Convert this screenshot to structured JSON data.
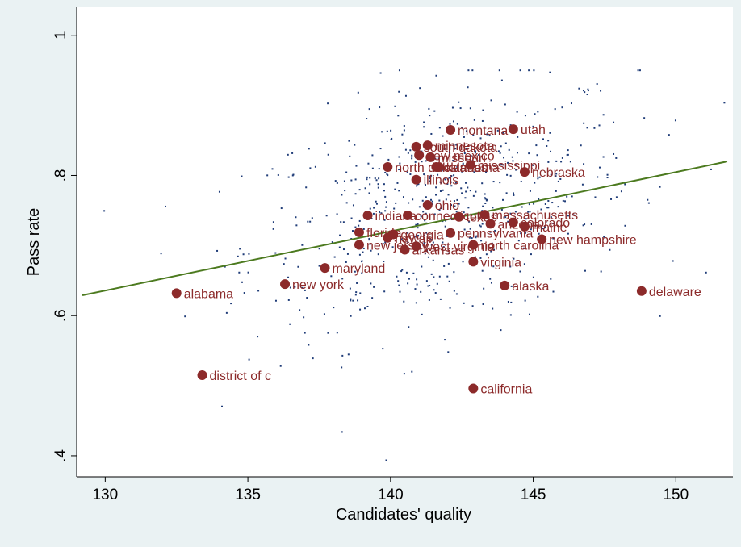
{
  "colors": {
    "background": "#eaf2f3",
    "plot_area": "#ffffff",
    "scatter_dots": "#1f3c78",
    "labeled_points": "#8c2a2a",
    "fit_line": "#4c7a1f",
    "axis": "#000000"
  },
  "chart_data": {
    "type": "scatter",
    "title": "",
    "xlabel": "Candidates' quality",
    "ylabel": "Pass rate",
    "xlim": [
      129,
      152
    ],
    "ylim": [
      0.37,
      1.04
    ],
    "xticks": [
      130,
      135,
      140,
      145,
      150
    ],
    "yticks": [
      0.4,
      0.6,
      0.8,
      1
    ],
    "ytick_labels": [
      ".4",
      ".6",
      ".8",
      "1"
    ],
    "grid": false,
    "fit_line": {
      "x": [
        129.2,
        151.8
      ],
      "y": [
        0.629,
        0.82
      ]
    },
    "background_points_count": 650,
    "labeled_points": [
      {
        "label": "alabama",
        "x": 132.5,
        "y": 0.632
      },
      {
        "label": "district of c",
        "x": 133.4,
        "y": 0.515
      },
      {
        "label": "new york",
        "x": 136.3,
        "y": 0.645
      },
      {
        "label": "maryland",
        "x": 137.7,
        "y": 0.668
      },
      {
        "label": "florida",
        "x": 138.9,
        "y": 0.719
      },
      {
        "label": "new jersey",
        "x": 138.9,
        "y": 0.701
      },
      {
        "label": "indiana",
        "x": 139.2,
        "y": 0.743
      },
      {
        "label": "north dakota",
        "x": 139.9,
        "y": 0.812
      },
      {
        "label": "hawaii",
        "x": 139.9,
        "y": 0.711
      },
      {
        "label": "georgia",
        "x": 140.1,
        "y": 0.716
      },
      {
        "label": "connecticut",
        "x": 140.6,
        "y": 0.743
      },
      {
        "label": "arkansas",
        "x": 140.5,
        "y": 0.694
      },
      {
        "label": "west virginia",
        "x": 140.9,
        "y": 0.699
      },
      {
        "label": "south dakota",
        "x": 140.9,
        "y": 0.841
      },
      {
        "label": "new mexico",
        "x": 141.0,
        "y": 0.829
      },
      {
        "label": "illinois",
        "x": 140.9,
        "y": 0.794
      },
      {
        "label": "minnesota",
        "x": 141.3,
        "y": 0.843
      },
      {
        "label": "ohio",
        "x": 141.3,
        "y": 0.758
      },
      {
        "label": "missouri",
        "x": 141.4,
        "y": 0.826
      },
      {
        "label": "oklahoma",
        "x": 141.6,
        "y": 0.812
      },
      {
        "label": "kansas",
        "x": 141.7,
        "y": 0.812
      },
      {
        "label": "montana",
        "x": 142.1,
        "y": 0.865
      },
      {
        "label": "pennsylvania",
        "x": 142.1,
        "y": 0.718
      },
      {
        "label": "texas",
        "x": 142.4,
        "y": 0.741
      },
      {
        "label": "mississippi",
        "x": 142.8,
        "y": 0.815
      },
      {
        "label": "north carolina",
        "x": 142.9,
        "y": 0.701
      },
      {
        "label": "virginia",
        "x": 142.9,
        "y": 0.677
      },
      {
        "label": "california",
        "x": 142.9,
        "y": 0.496
      },
      {
        "label": "massachusetts",
        "x": 143.3,
        "y": 0.744
      },
      {
        "label": "arizona",
        "x": 143.5,
        "y": 0.731
      },
      {
        "label": "alaska",
        "x": 144.0,
        "y": 0.643
      },
      {
        "label": "colorado",
        "x": 144.3,
        "y": 0.733
      },
      {
        "label": "utah",
        "x": 144.3,
        "y": 0.866
      },
      {
        "label": "maine",
        "x": 144.7,
        "y": 0.727
      },
      {
        "label": "nebraska",
        "x": 144.7,
        "y": 0.805
      },
      {
        "label": "new hampshire",
        "x": 145.3,
        "y": 0.709
      },
      {
        "label": "delaware",
        "x": 148.8,
        "y": 0.635
      }
    ]
  }
}
